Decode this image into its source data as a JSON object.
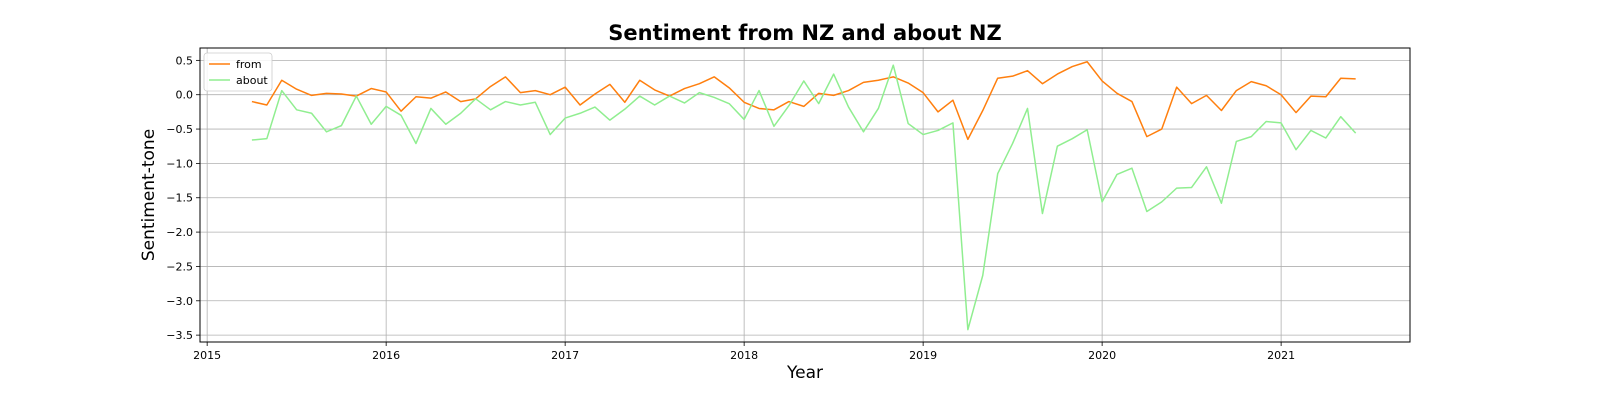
{
  "chart_data": {
    "type": "line",
    "title": "Sentiment from NZ and about NZ",
    "xlabel": "Year",
    "ylabel": "Sentiment-tone",
    "xlim": [
      2014.96,
      2021.72
    ],
    "ylim": [
      -3.6,
      0.68
    ],
    "x_ticks": [
      2015,
      2016,
      2017,
      2018,
      2019,
      2020,
      2021
    ],
    "y_ticks": [
      0.5,
      0.0,
      -0.5,
      -1.0,
      -1.5,
      -2.0,
      -2.5,
      -3.0,
      -3.5
    ],
    "y_tick_labels": [
      "0.5",
      "0.0",
      "−0.5",
      "−1.0",
      "−1.5",
      "−2.0",
      "−2.5",
      "−3.0",
      "−3.5"
    ],
    "grid": true,
    "legend_position": "top-left",
    "x_start": 2015.25,
    "x_step": 0.08333,
    "series": [
      {
        "name": "from",
        "color": "#ff7f0e",
        "values": [
          -0.1,
          -0.15,
          0.21,
          0.08,
          -0.01,
          0.02,
          0.01,
          -0.02,
          0.09,
          0.04,
          -0.24,
          -0.03,
          -0.05,
          0.04,
          -0.1,
          -0.06,
          0.12,
          0.26,
          0.03,
          0.06,
          0.0,
          0.11,
          -0.15,
          0.01,
          0.15,
          -0.11,
          0.21,
          0.07,
          -0.02,
          0.09,
          0.16,
          0.26,
          0.1,
          -0.11,
          -0.2,
          -0.22,
          -0.1,
          -0.17,
          0.02,
          -0.01,
          0.06,
          0.18,
          0.21,
          0.26,
          0.17,
          0.03,
          -0.25,
          -0.08,
          -0.65,
          -0.23,
          0.24,
          0.27,
          0.35,
          0.16,
          0.3,
          0.41,
          0.48,
          0.2,
          0.02,
          -0.1,
          -0.61,
          -0.5,
          0.11,
          -0.13,
          -0.01,
          -0.23,
          0.06,
          0.19,
          0.13,
          0.0,
          -0.26,
          -0.02,
          -0.03,
          0.24,
          0.23
        ]
      },
      {
        "name": "about",
        "color": "#90ee90",
        "values": [
          -0.66,
          -0.64,
          0.06,
          -0.22,
          -0.27,
          -0.54,
          -0.45,
          -0.02,
          -0.43,
          -0.17,
          -0.3,
          -0.71,
          -0.2,
          -0.43,
          -0.27,
          -0.06,
          -0.22,
          -0.1,
          -0.15,
          -0.11,
          -0.58,
          -0.34,
          -0.27,
          -0.18,
          -0.37,
          -0.21,
          -0.02,
          -0.15,
          -0.02,
          -0.12,
          0.03,
          -0.04,
          -0.13,
          -0.36,
          0.06,
          -0.46,
          -0.16,
          0.2,
          -0.13,
          0.3,
          -0.18,
          -0.54,
          -0.2,
          0.43,
          -0.42,
          -0.58,
          -0.52,
          -0.41,
          -3.42,
          -2.63,
          -1.15,
          -0.71,
          -0.2,
          -1.73,
          -0.75,
          -0.64,
          -0.51,
          -1.56,
          -1.16,
          -1.07,
          -1.7,
          -1.56,
          -1.36,
          -1.35,
          -1.05,
          -1.58,
          -0.68,
          -0.61,
          -0.39,
          -0.41,
          -0.8,
          -0.52,
          -0.63,
          -0.32,
          -0.56
        ]
      }
    ]
  }
}
